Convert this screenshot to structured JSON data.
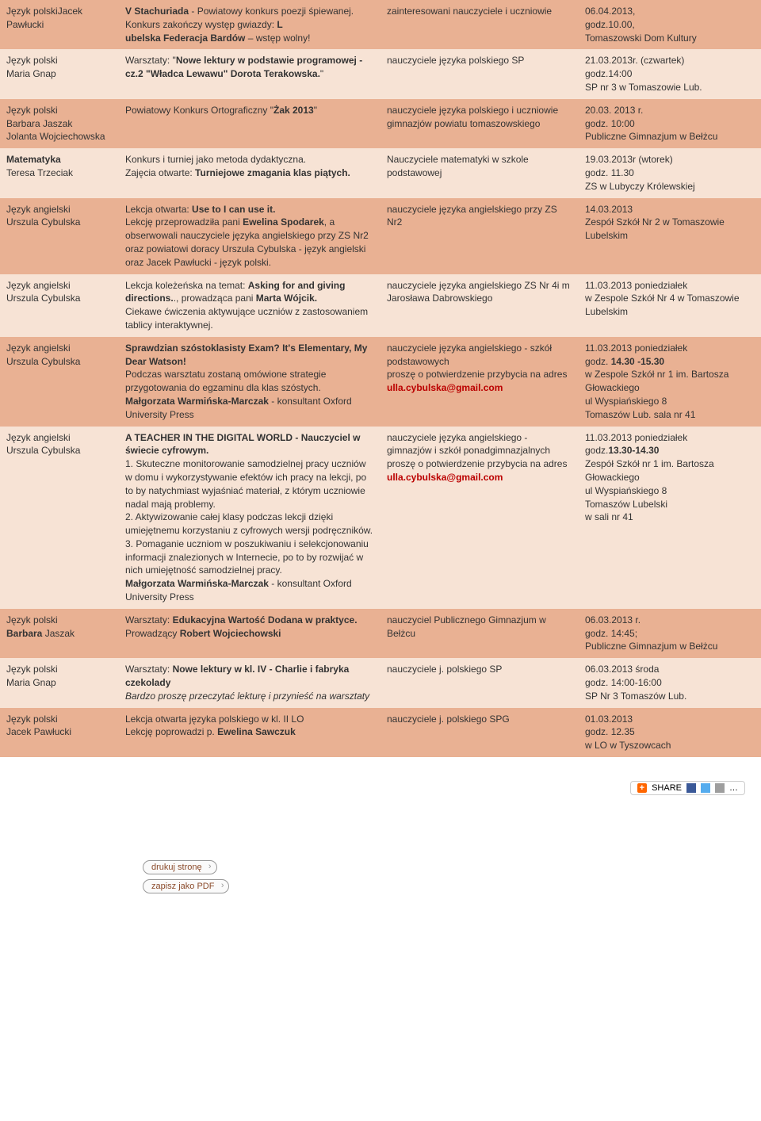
{
  "colors": {
    "row_dark": "#e9b193",
    "row_light": "#f7e3d5",
    "text": "#333333",
    "bold_red": "#b00000"
  },
  "rows": [
    {
      "bg": "dk",
      "c0": [
        {
          "t": "Język polski"
        },
        {
          "t": "Jacek Pawłucki"
        }
      ],
      "c1": [
        {
          "b": true,
          "t": "V Stachuriada"
        },
        {
          "t": " - Powiatowy konkurs poezji śpiewanej."
        },
        {
          "br": true
        },
        {
          "t": "Konkurs zakończy występ gwiazdy: "
        },
        {
          "b": true,
          "t": "L"
        },
        {
          "br": true
        },
        {
          "b": true,
          "t": "ubelska Federacja Bardów"
        },
        {
          "t": " – wstęp wolny!"
        }
      ],
      "c2": [
        {
          "t": "zainteresowani nauczyciele i uczniowie"
        }
      ],
      "c3": [
        {
          "t": "06.04.2013,"
        },
        {
          "br": true
        },
        {
          "t": "godz.10.00,"
        },
        {
          "br": true
        },
        {
          "t": "Tomaszowski Dom Kultury"
        }
      ]
    },
    {
      "bg": "lt",
      "c0": [
        {
          "t": "Język polski"
        },
        {
          "br": true
        },
        {
          "t": "Maria Gnap"
        }
      ],
      "c1": [
        {
          "t": "Warsztaty: \""
        },
        {
          "b": true,
          "t": "Nowe lektury w podstawie programowej - cz.2 \"Władca Lewawu\" Dorota Terakowska."
        },
        {
          "t": "\""
        }
      ],
      "c2": [
        {
          "t": "nauczyciele języka polskiego SP"
        }
      ],
      "c3": [
        {
          "t": "21.03.2013r. (czwartek)"
        },
        {
          "br": true
        },
        {
          "t": "godz.14:00"
        },
        {
          "br": true
        },
        {
          "t": "SP nr 3 w Tomaszowie Lub."
        }
      ]
    },
    {
      "bg": "dk",
      "c0": [
        {
          "t": "Język polski"
        },
        {
          "br": true
        },
        {
          "t": "Barbara Jaszak"
        },
        {
          "br": true
        },
        {
          "t": "Jolanta Wojciechowska"
        }
      ],
      "c1": [
        {
          "t": "Powiatowy Konkurs Ortograficzny \""
        },
        {
          "b": true,
          "t": "Żak 2013"
        },
        {
          "t": "\""
        }
      ],
      "c2": [
        {
          "t": "nauczyciele języka polskiego i uczniowie gimnazjów powiatu tomaszowskiego"
        }
      ],
      "c3": [
        {
          "t": "20.03. 2013 r."
        },
        {
          "br": true
        },
        {
          "t": "godz. 10:00"
        },
        {
          "br": true
        },
        {
          "t": "Publiczne Gimnazjum w Bełżcu"
        }
      ]
    },
    {
      "bg": "lt",
      "c0": [
        {
          "b": true,
          "t": "Matematyka"
        },
        {
          "br": true
        },
        {
          "t": "Teresa Trzeciak"
        }
      ],
      "c1": [
        {
          "t": "Konkurs i turniej jako metoda dydaktyczna."
        },
        {
          "br": true
        },
        {
          "t": "Zajęcia otwarte: "
        },
        {
          "b": true,
          "t": "Turniejowe zmagania klas piątych."
        }
      ],
      "c2": [
        {
          "t": "Nauczyciele matematyki w szkole podstawowej"
        }
      ],
      "c3": [
        {
          "t": "19.03.2013r (wtorek)"
        },
        {
          "br": true
        },
        {
          "t": "godz. 11.30"
        },
        {
          "br": true
        },
        {
          "t": "ZS w Lubyczy Królewskiej"
        }
      ]
    },
    {
      "bg": "dk",
      "c0": [
        {
          "t": "Język angielski"
        },
        {
          "br": true
        },
        {
          "t": "Urszula Cybulska"
        }
      ],
      "c1": [
        {
          "t": "Lekcja otwarta: "
        },
        {
          "b": true,
          "t": "Use to I can use it."
        },
        {
          "br": true
        },
        {
          "t": "Lekcję przeprowadziła pani "
        },
        {
          "b": true,
          "t": "Ewelina Spodarek"
        },
        {
          "t": ", a obserwowali nauczyciele języka angielskiego przy ZS Nr2 oraz powiatowi doracy Urszula Cybulska - język angielski oraz Jacek Pawłucki - język polski."
        }
      ],
      "c2": [
        {
          "t": "nauczyciele języka angielskiego przy ZS Nr2"
        }
      ],
      "c3": [
        {
          "t": "14.03.2013"
        },
        {
          "br": true
        },
        {
          "t": "Zespół Szkół Nr 2 w Tomaszowie Lubelskim"
        }
      ]
    },
    {
      "bg": "lt",
      "c0": [
        {
          "t": "Język angielski"
        },
        {
          "br": true
        },
        {
          "t": "Urszula Cybulska"
        }
      ],
      "c1": [
        {
          "t": "Lekcja koleżeńska na temat: "
        },
        {
          "b": true,
          "t": "Asking for and giving directions."
        },
        {
          "t": "., prowadząca pani "
        },
        {
          "b": true,
          "t": "Marta Wójcik."
        },
        {
          "br": true
        },
        {
          "t": "Ciekawe ćwiczenia aktywujące uczniów z zastosowaniem tablicy interaktywnej."
        }
      ],
      "c2": [
        {
          "t": "nauczyciele języka angielskiego ZS Nr 4i m Jarosława Dabrowskiego"
        }
      ],
      "c3": [
        {
          "t": "11.03.2013 poniedziałek"
        },
        {
          "br": true
        },
        {
          "t": "w Zespole Szkół Nr 4 w Tomaszowie Lubelskim"
        }
      ]
    },
    {
      "bg": "dk",
      "c0": [
        {
          "t": "Język angielski"
        },
        {
          "br": true
        },
        {
          "t": "Urszula Cybulska"
        }
      ],
      "c1": [
        {
          "b": true,
          "t": "Sprawdzian szóstoklasisty Exam? It's Elementary, My Dear Watson!"
        },
        {
          "br": true
        },
        {
          "t": "Podczas warsztatu zostaną omówione strategie przygotowania do egzaminu dla klas szóstych."
        },
        {
          "br": true
        },
        {
          "b": true,
          "t": "Małgorzata Warmińska-Marczak"
        },
        {
          "t": " - konsultant Oxford University Press"
        }
      ],
      "c2": [
        {
          "t": "nauczyciele języka angielskiego - szkół podstawowych"
        },
        {
          "br": true
        },
        {
          "t": "proszę o potwierdzenie przybycia na adres "
        },
        {
          "b": true,
          "red": true,
          "t": "ulla.cybulska@gmail.com"
        }
      ],
      "c3": [
        {
          "t": "11.03.2013 poniedziałek"
        },
        {
          "br": true
        },
        {
          "t": "godz. "
        },
        {
          "b": true,
          "t": "14.30 -15.30"
        },
        {
          "br": true
        },
        {
          "t": "w Zespole Szkół nr 1 im. Bartosza Głowackiego"
        },
        {
          "br": true
        },
        {
          "t": "ul Wyspiańskiego 8"
        },
        {
          "br": true
        },
        {
          "t": "Tomaszów Lub. sala nr 41"
        }
      ]
    },
    {
      "bg": "lt",
      "c0": [
        {
          "t": "Język angielski"
        },
        {
          "br": true
        },
        {
          "t": "Urszula Cybulska"
        }
      ],
      "c1": [
        {
          "b": true,
          "t": "A TEACHER IN THE DIGITAL WORLD - Nauczyciel w świecie cyfrowym."
        },
        {
          "br": true
        },
        {
          "t": "1. Skuteczne monitorowanie samodzielnej pracy uczniów w domu i wykorzystywanie efektów ich pracy na lekcji, po to by natychmiast wyjaśniać materiał, z którym uczniowie nadal mają problemy."
        },
        {
          "br": true
        },
        {
          "t": "2. Aktywizowanie całej klasy podczas lekcji dzięki umiejętnemu korzystaniu z cyfrowych wersji podręczników."
        },
        {
          "br": true
        },
        {
          "t": "3. Pomaganie uczniom w poszukiwaniu i selekcjonowaniu informacji znalezionych w Internecie, po to by rozwijać w nich umiejętność samodzielnej pracy."
        },
        {
          "br": true
        },
        {
          "b": true,
          "t": "Małgorzata Warmińska-Marczak"
        },
        {
          "t": " - konsultant Oxford University Press"
        }
      ],
      "c2": [
        {
          "t": "nauczyciele języka angielskiego - gimnazjów i szkół ponadgimnazjalnych"
        },
        {
          "br": true
        },
        {
          "t": "proszę o potwierdzenie przybycia na adres "
        },
        {
          "b": true,
          "red": true,
          "t": "ulla.cybulska@gmail.com"
        }
      ],
      "c3": [
        {
          "t": "11.03.2013 poniedziałek"
        },
        {
          "br": true
        },
        {
          "t": "godz."
        },
        {
          "b": true,
          "t": "13.30-14.30"
        },
        {
          "br": true
        },
        {
          "t": "Zespół Szkół nr 1 im. Bartosza Głowackiego"
        },
        {
          "br": true
        },
        {
          "t": "ul Wyspiańskiego 8"
        },
        {
          "br": true
        },
        {
          "t": "Tomaszów Lubelski"
        },
        {
          "br": true
        },
        {
          "t": "w sali nr 41"
        }
      ]
    },
    {
      "bg": "dk",
      "c0": [
        {
          "t": "Język polski"
        },
        {
          "br": true
        },
        {
          "b": true,
          "t": "Barbara "
        },
        {
          "t": "Jaszak"
        }
      ],
      "c1": [
        {
          "t": "Warsztaty: "
        },
        {
          "b": true,
          "t": "Edukacyjna Wartość Dodana w praktyce."
        },
        {
          "br": true
        },
        {
          "t": "Prowadzący "
        },
        {
          "b": true,
          "t": "Robert Wojciechowski"
        }
      ],
      "c2": [
        {
          "t": "nauczyciel Publicznego Gimnazjum w Bełżcu"
        }
      ],
      "c3": [
        {
          "t": "06.03.2013 r."
        },
        {
          "br": true
        },
        {
          "t": "godz. 14:45;"
        },
        {
          "br": true
        },
        {
          "t": "Publiczne Gimnazjum w Bełżcu"
        }
      ]
    },
    {
      "bg": "lt",
      "c0": [
        {
          "t": "Język polski"
        },
        {
          "br": true
        },
        {
          "t": "Maria Gnap"
        }
      ],
      "c1": [
        {
          "t": "Warsztaty: "
        },
        {
          "b": true,
          "t": "Nowe lektury w kl. IV - Charlie i fabryka czekolady"
        },
        {
          "br": true
        },
        {
          "i": true,
          "t": "Bardzo proszę przeczytać lekturę i przynieść na warsztaty"
        }
      ],
      "c2": [
        {
          "t": "nauczyciele j. polskiego SP"
        }
      ],
      "c3": [
        {
          "t": "06.03.2013 środa"
        },
        {
          "br": true
        },
        {
          "t": "godz. 14:00-16:00"
        },
        {
          "br": true
        },
        {
          "t": "SP Nr 3 Tomaszów Lub."
        }
      ]
    },
    {
      "bg": "dk",
      "c0": [
        {
          "t": "Język polski"
        },
        {
          "br": true
        },
        {
          "t": "Jacek Pawłucki"
        }
      ],
      "c1": [
        {
          "t": "Lekcja otwarta języka polskiego w kl. II LO"
        },
        {
          "br": true
        },
        {
          "t": "Lekcję poprowadzi p. "
        },
        {
          "b": true,
          "t": "Ewelina Sawczuk"
        }
      ],
      "c2": [
        {
          "t": "nauczyciele j. polskiego SPG"
        }
      ],
      "c3": [
        {
          "t": "01.03.2013"
        },
        {
          "br": true
        },
        {
          "t": "godz. 12.35"
        },
        {
          "br": true
        },
        {
          "t": "w LO w Tyszowcach"
        }
      ]
    }
  ],
  "buttons": {
    "print": "drukuj stronę",
    "save_pdf": "zapisz jako PDF"
  },
  "share": {
    "label": "SHARE"
  }
}
